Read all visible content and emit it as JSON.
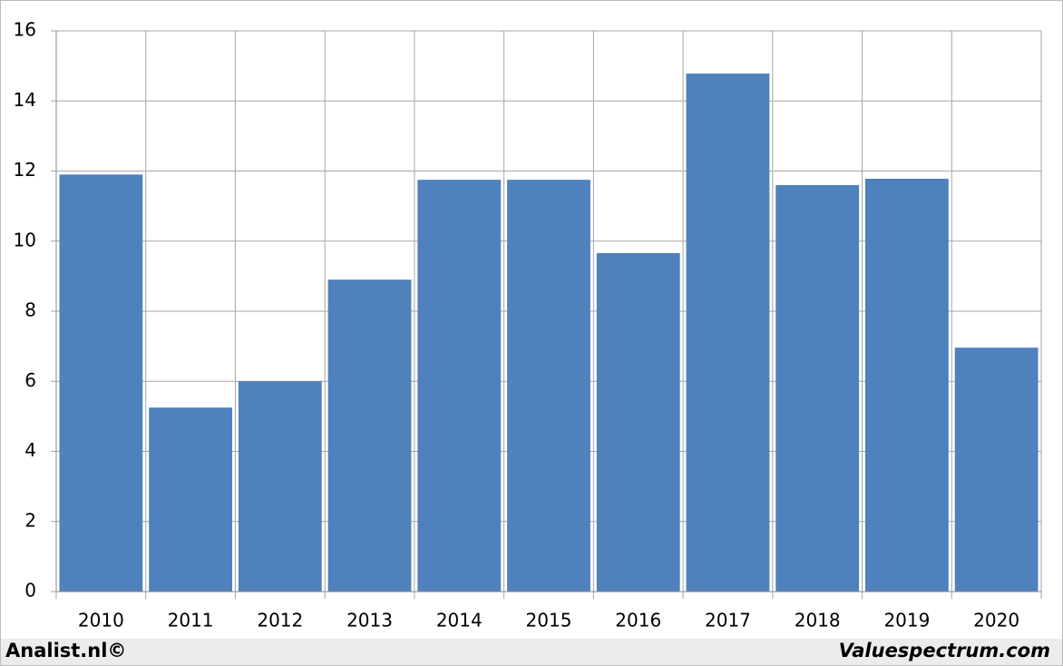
{
  "chart_data": {
    "type": "bar",
    "categories": [
      "2010",
      "2011",
      "2012",
      "2013",
      "2014",
      "2015",
      "2016",
      "2017",
      "2018",
      "2019",
      "2020"
    ],
    "values": [
      11.9,
      5.25,
      6.0,
      8.9,
      11.75,
      11.75,
      9.66,
      14.78,
      11.6,
      11.78,
      6.96
    ],
    "color": "#4f81bd",
    "ylim": [
      0,
      16
    ],
    "yticks": [
      0,
      2,
      4,
      6,
      8,
      10,
      12,
      14,
      16
    ],
    "grid": true,
    "annotations": [
      "Analist.nl©",
      "Valuespectrum.com"
    ]
  }
}
